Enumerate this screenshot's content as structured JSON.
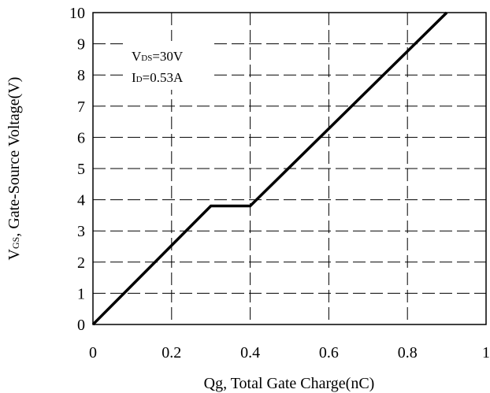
{
  "chart_data": {
    "type": "line",
    "title": "",
    "xlabel": "Qg, Total Gate Charge(nC)",
    "ylabel": {
      "sym": "V",
      "sub": "GS",
      "rest": ", Gate-Source Voltage(V)"
    },
    "xlim": [
      0,
      1
    ],
    "ylim": [
      0,
      10
    ],
    "x_ticks": [
      0,
      0.2,
      0.4,
      0.6,
      0.8,
      1
    ],
    "x_tick_labels": [
      "0",
      "0.2",
      "0.4",
      "0.6",
      "0.8",
      "1"
    ],
    "y_ticks": [
      0,
      1,
      2,
      3,
      4,
      5,
      6,
      7,
      8,
      9,
      10
    ],
    "y_tick_labels": [
      "0",
      "1",
      "2",
      "3",
      "4",
      "5",
      "6",
      "7",
      "8",
      "9",
      "10"
    ],
    "grid": true,
    "grid_style": "dashed",
    "series": [
      {
        "x": [
          0,
          0.3,
          0.4,
          0.9
        ],
        "y": [
          0,
          3.8,
          3.8,
          10
        ],
        "color": "#000000"
      }
    ],
    "annotations": [
      {
        "sym": "V",
        "sub": "DS",
        "rest": "=30V"
      },
      {
        "sym": "I",
        "sub": "D",
        "rest": "=0.53A"
      }
    ]
  }
}
